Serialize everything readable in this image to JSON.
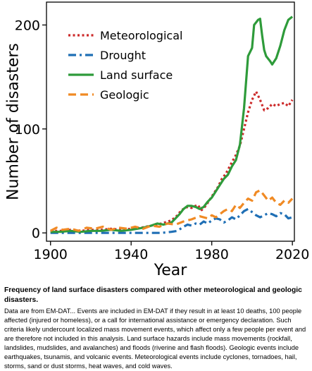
{
  "caption": {
    "title": "Frequency of land surface disasters compared with other meteorological and geologic disasters.",
    "body": "Data are from EM-DAT... Events are included in EM-DAT if they result in at least 10 deaths, 100 people affected (injured or homeless), or a call for international assistance or emergency declaration. Such criteria likely undercount localized mass movement events, which affect only a few people per event and are therefore not included in this analysis. Land surface hazards include mass movements (rockfall, landslides, mudslides, and avalanches) and floods (riverine and flash floods). Geologic events include earthquakes, tsunamis, and volcanic events. Meteorological events include cyclones, tornadoes, hail, storms, sand or dust storms, heat waves, and cold waves."
  },
  "chart_data": {
    "type": "line",
    "title": "",
    "xlabel": "Year",
    "ylabel": "Number of disasters",
    "xlim": [
      1898,
      2021
    ],
    "ylim": [
      -8,
      222
    ],
    "xticks": [
      1900,
      1940,
      1980,
      2020
    ],
    "yticks": [
      0,
      100,
      200
    ],
    "grid": false,
    "legend_position": "top-left",
    "series": [
      {
        "name": "Meteorological",
        "color": "#cc2a2a",
        "dash": "dotted",
        "points": [
          [
            1900,
            2
          ],
          [
            1905,
            2
          ],
          [
            1910,
            3
          ],
          [
            1915,
            2
          ],
          [
            1920,
            3
          ],
          [
            1925,
            3
          ],
          [
            1930,
            4
          ],
          [
            1935,
            3
          ],
          [
            1940,
            4
          ],
          [
            1945,
            5
          ],
          [
            1950,
            7
          ],
          [
            1955,
            9
          ],
          [
            1960,
            12
          ],
          [
            1963,
            17
          ],
          [
            1965,
            22
          ],
          [
            1968,
            25
          ],
          [
            1970,
            24
          ],
          [
            1973,
            27
          ],
          [
            1975,
            22
          ],
          [
            1977,
            26
          ],
          [
            1980,
            35
          ],
          [
            1983,
            44
          ],
          [
            1985,
            52
          ],
          [
            1987,
            57
          ],
          [
            1990,
            68
          ],
          [
            1992,
            75
          ],
          [
            1994,
            84
          ],
          [
            1996,
            100
          ],
          [
            1998,
            116
          ],
          [
            2000,
            128
          ],
          [
            2002,
            136
          ],
          [
            2004,
            128
          ],
          [
            2006,
            118
          ],
          [
            2008,
            120
          ],
          [
            2010,
            124
          ],
          [
            2012,
            122
          ],
          [
            2014,
            124
          ],
          [
            2016,
            125
          ],
          [
            2018,
            122
          ],
          [
            2020,
            128
          ]
        ]
      },
      {
        "name": "Drought",
        "color": "#1f6fb5",
        "dash": "dashdot",
        "points": [
          [
            1900,
            0
          ],
          [
            1920,
            0
          ],
          [
            1940,
            0
          ],
          [
            1955,
            0
          ],
          [
            1960,
            1
          ],
          [
            1963,
            2
          ],
          [
            1966,
            6
          ],
          [
            1968,
            8
          ],
          [
            1970,
            7
          ],
          [
            1972,
            9
          ],
          [
            1974,
            8
          ],
          [
            1976,
            11
          ],
          [
            1978,
            9
          ],
          [
            1980,
            12
          ],
          [
            1982,
            14
          ],
          [
            1984,
            13
          ],
          [
            1986,
            10
          ],
          [
            1988,
            12
          ],
          [
            1990,
            15
          ],
          [
            1992,
            13
          ],
          [
            1994,
            17
          ],
          [
            1996,
            21
          ],
          [
            1998,
            23
          ],
          [
            2000,
            20
          ],
          [
            2002,
            17
          ],
          [
            2004,
            15
          ],
          [
            2006,
            17
          ],
          [
            2008,
            19
          ],
          [
            2010,
            18
          ],
          [
            2012,
            16
          ],
          [
            2014,
            19
          ],
          [
            2016,
            18
          ],
          [
            2018,
            14
          ],
          [
            2020,
            15
          ]
        ]
      },
      {
        "name": "Land surface",
        "color": "#2e9b3a",
        "dash": "solid",
        "points": [
          [
            1900,
            1
          ],
          [
            1905,
            1
          ],
          [
            1910,
            2
          ],
          [
            1915,
            1
          ],
          [
            1920,
            2
          ],
          [
            1925,
            2
          ],
          [
            1930,
            3
          ],
          [
            1935,
            2
          ],
          [
            1940,
            3
          ],
          [
            1943,
            4
          ],
          [
            1946,
            5
          ],
          [
            1950,
            7
          ],
          [
            1953,
            9
          ],
          [
            1956,
            8
          ],
          [
            1960,
            10
          ],
          [
            1962,
            14
          ],
          [
            1964,
            18
          ],
          [
            1966,
            23
          ],
          [
            1968,
            26
          ],
          [
            1970,
            26
          ],
          [
            1972,
            25
          ],
          [
            1974,
            23
          ],
          [
            1976,
            25
          ],
          [
            1978,
            30
          ],
          [
            1980,
            34
          ],
          [
            1982,
            40
          ],
          [
            1984,
            46
          ],
          [
            1986,
            52
          ],
          [
            1988,
            56
          ],
          [
            1990,
            64
          ],
          [
            1992,
            70
          ],
          [
            1994,
            85
          ],
          [
            1996,
            120
          ],
          [
            1998,
            170
          ],
          [
            2000,
            178
          ],
          [
            2001,
            200
          ],
          [
            2003,
            205
          ],
          [
            2004,
            206
          ],
          [
            2005,
            190
          ],
          [
            2006,
            176
          ],
          [
            2007,
            170
          ],
          [
            2009,
            165
          ],
          [
            2010,
            162
          ],
          [
            2012,
            168
          ],
          [
            2014,
            180
          ],
          [
            2016,
            195
          ],
          [
            2018,
            205
          ],
          [
            2020,
            208
          ]
        ]
      },
      {
        "name": "Geologic",
        "color": "#f08a24",
        "dash": "dashed",
        "points": [
          [
            1900,
            2
          ],
          [
            1903,
            5
          ],
          [
            1906,
            3
          ],
          [
            1910,
            4
          ],
          [
            1914,
            2
          ],
          [
            1918,
            5
          ],
          [
            1922,
            4
          ],
          [
            1926,
            6
          ],
          [
            1930,
            3
          ],
          [
            1934,
            5
          ],
          [
            1938,
            4
          ],
          [
            1942,
            6
          ],
          [
            1946,
            4
          ],
          [
            1950,
            7
          ],
          [
            1954,
            6
          ],
          [
            1958,
            9
          ],
          [
            1962,
            8
          ],
          [
            1966,
            11
          ],
          [
            1970,
            13
          ],
          [
            1974,
            16
          ],
          [
            1978,
            14
          ],
          [
            1980,
            17
          ],
          [
            1982,
            15
          ],
          [
            1984,
            18
          ],
          [
            1986,
            21
          ],
          [
            1988,
            23
          ],
          [
            1990,
            21
          ],
          [
            1992,
            27
          ],
          [
            1994,
            24
          ],
          [
            1996,
            29
          ],
          [
            1998,
            33
          ],
          [
            2000,
            31
          ],
          [
            2002,
            39
          ],
          [
            2004,
            41
          ],
          [
            2006,
            36
          ],
          [
            2008,
            31
          ],
          [
            2010,
            34
          ],
          [
            2012,
            29
          ],
          [
            2014,
            27
          ],
          [
            2016,
            31
          ],
          [
            2018,
            29
          ],
          [
            2020,
            33
          ]
        ]
      }
    ]
  }
}
